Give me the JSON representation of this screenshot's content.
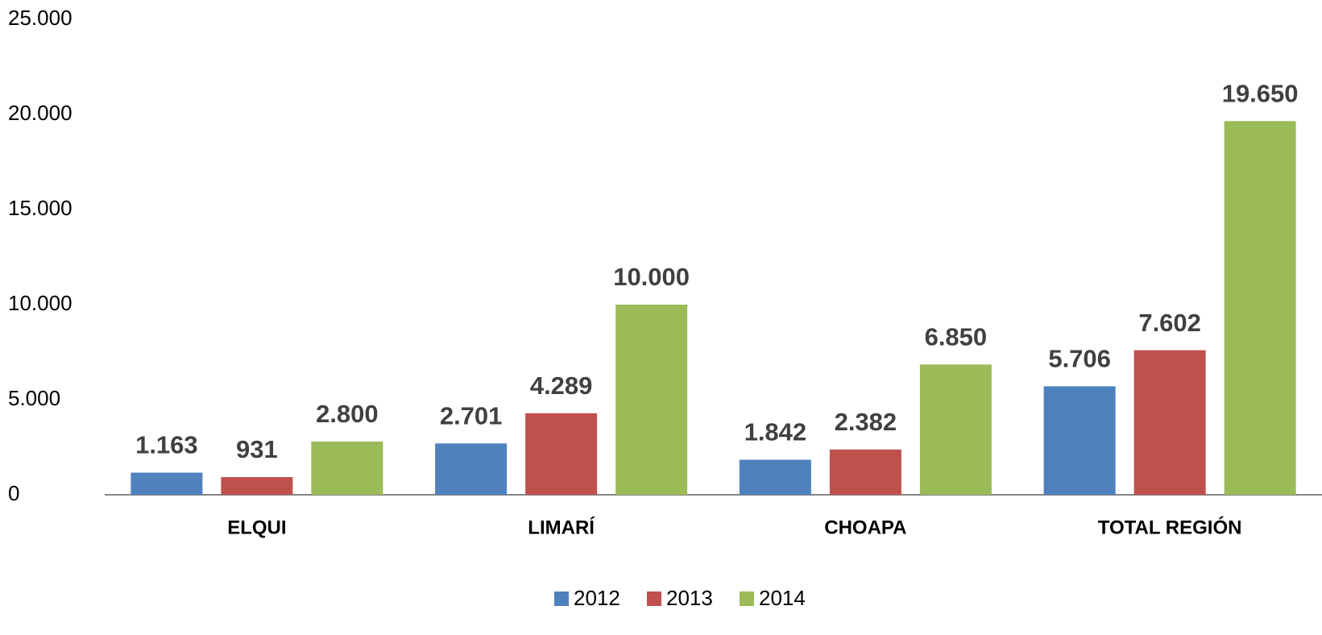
{
  "chart_data": {
    "type": "bar",
    "categories": [
      "ELQUI",
      "LIMARÍ",
      "CHOAPA",
      "TOTAL REGIÓN"
    ],
    "series": [
      {
        "name": "2012",
        "color": "#4f81bd",
        "values": [
          1163,
          2701,
          1842,
          5706
        ],
        "value_labels": [
          "1.163",
          "2.701",
          "1.842",
          "5.706"
        ]
      },
      {
        "name": "2013",
        "color": "#c0504d",
        "values": [
          931,
          4289,
          2382,
          7602
        ],
        "value_labels": [
          "931",
          "4.289",
          "2.382",
          "7.602"
        ]
      },
      {
        "name": "2014",
        "color": "#9bbb59",
        "values": [
          2800,
          10000,
          6850,
          19650
        ],
        "value_labels": [
          "2.800",
          "10.000",
          "6.850",
          "19.650"
        ]
      }
    ],
    "ylim": [
      0,
      25000
    ],
    "yticks": [
      0,
      {
        "value": 5000,
        "label": "5.000"
      },
      {
        "value": 10000,
        "label": "10.000"
      },
      {
        "value": 15000,
        "label": "15.000"
      },
      {
        "value": 20000,
        "label": "20.000"
      },
      {
        "value": 25000,
        "label": "25.000"
      }
    ],
    "grid": false,
    "legend": "bottom"
  }
}
